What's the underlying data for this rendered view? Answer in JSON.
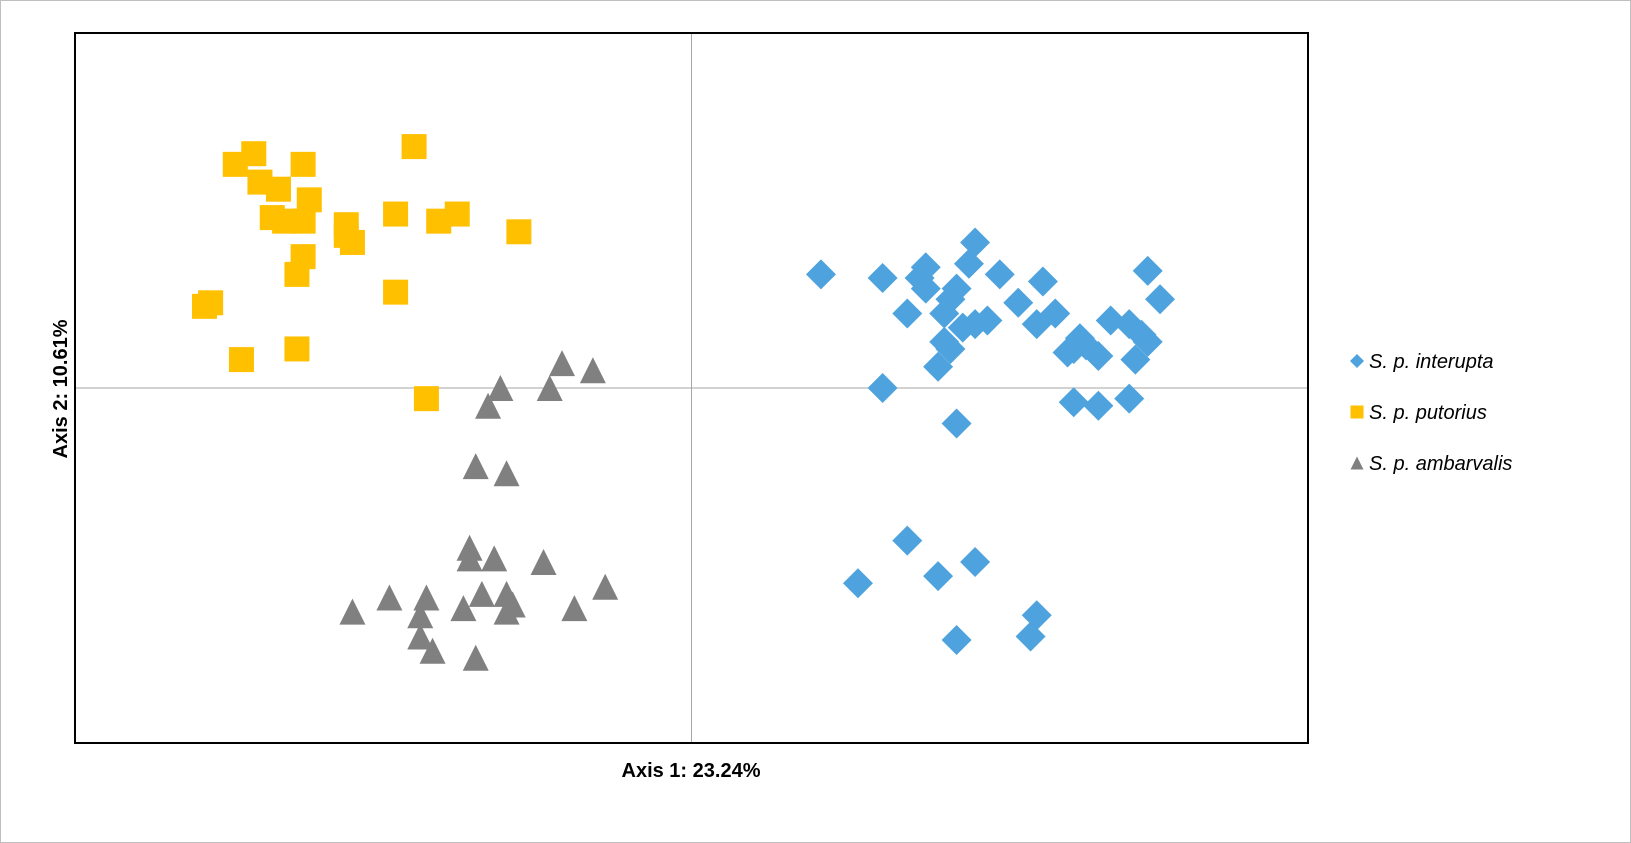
{
  "chart_data": {
    "type": "scatter",
    "title": "",
    "xlabel": "Axis 1: 23.24%",
    "ylabel": "Axis 2: 10.61%",
    "xlim": [
      -1,
      1
    ],
    "ylim": [
      -1,
      1
    ],
    "grid": false,
    "origin_lines": true,
    "legend_position": "right",
    "series": [
      {
        "name": "S. p. interupta",
        "marker": "diamond",
        "color": "#4EA3DE",
        "points": [
          [
            0.21,
            0.32
          ],
          [
            0.31,
            0.31
          ],
          [
            0.38,
            0.34
          ],
          [
            0.37,
            0.31
          ],
          [
            0.45,
            0.35
          ],
          [
            0.46,
            0.41
          ],
          [
            0.5,
            0.32
          ],
          [
            0.57,
            0.3
          ],
          [
            0.38,
            0.28
          ],
          [
            0.42,
            0.25
          ],
          [
            0.43,
            0.28
          ],
          [
            0.35,
            0.21
          ],
          [
            0.41,
            0.21
          ],
          [
            0.44,
            0.17
          ],
          [
            0.46,
            0.18
          ],
          [
            0.48,
            0.19
          ],
          [
            0.53,
            0.24
          ],
          [
            0.41,
            0.13
          ],
          [
            0.42,
            0.11
          ],
          [
            0.4,
            0.06
          ],
          [
            0.56,
            0.18
          ],
          [
            0.59,
            0.21
          ],
          [
            0.62,
            0.11
          ],
          [
            0.64,
            0.12
          ],
          [
            0.66,
            0.09
          ],
          [
            0.61,
            0.1
          ],
          [
            0.63,
            0.14
          ],
          [
            0.68,
            0.19
          ],
          [
            0.71,
            0.18
          ],
          [
            0.73,
            0.15
          ],
          [
            0.74,
            0.13
          ],
          [
            0.72,
            0.08
          ],
          [
            0.74,
            0.33
          ],
          [
            0.76,
            0.25
          ],
          [
            0.31,
            0.0
          ],
          [
            0.43,
            -0.1
          ],
          [
            0.62,
            -0.04
          ],
          [
            0.66,
            -0.05
          ],
          [
            0.71,
            -0.03
          ],
          [
            0.35,
            -0.43
          ],
          [
            0.27,
            -0.55
          ],
          [
            0.4,
            -0.53
          ],
          [
            0.46,
            -0.49
          ],
          [
            0.43,
            -0.71
          ],
          [
            0.55,
            -0.7
          ],
          [
            0.56,
            -0.64
          ]
        ]
      },
      {
        "name": "S. p. putorius",
        "marker": "square",
        "color": "#FFC000",
        "points": [
          [
            -0.74,
            0.63
          ],
          [
            -0.71,
            0.66
          ],
          [
            -0.7,
            0.58
          ],
          [
            -0.67,
            0.56
          ],
          [
            -0.68,
            0.48
          ],
          [
            -0.66,
            0.47
          ],
          [
            -0.63,
            0.47
          ],
          [
            -0.63,
            0.63
          ],
          [
            -0.62,
            0.53
          ],
          [
            -0.56,
            0.46
          ],
          [
            -0.56,
            0.43
          ],
          [
            -0.55,
            0.41
          ],
          [
            -0.48,
            0.49
          ],
          [
            -0.45,
            0.68
          ],
          [
            -0.41,
            0.47
          ],
          [
            -0.38,
            0.49
          ],
          [
            -0.28,
            0.44
          ],
          [
            -0.63,
            0.37
          ],
          [
            -0.64,
            0.32
          ],
          [
            -0.48,
            0.27
          ],
          [
            -0.78,
            0.24
          ],
          [
            -0.79,
            0.23
          ],
          [
            -0.73,
            0.08
          ],
          [
            -0.64,
            0.11
          ],
          [
            -0.43,
            -0.03
          ]
        ]
      },
      {
        "name": "S. p. ambarvalis",
        "marker": "triangle",
        "color": "#808080",
        "points": [
          [
            -0.21,
            0.07
          ],
          [
            -0.16,
            0.05
          ],
          [
            -0.23,
            0.0
          ],
          [
            -0.31,
            0.0
          ],
          [
            -0.33,
            -0.05
          ],
          [
            -0.35,
            -0.22
          ],
          [
            -0.3,
            -0.24
          ],
          [
            -0.36,
            -0.45
          ],
          [
            -0.36,
            -0.48
          ],
          [
            -0.32,
            -0.48
          ],
          [
            -0.24,
            -0.49
          ],
          [
            -0.34,
            -0.58
          ],
          [
            -0.3,
            -0.58
          ],
          [
            -0.29,
            -0.61
          ],
          [
            -0.3,
            -0.63
          ],
          [
            -0.37,
            -0.62
          ],
          [
            -0.49,
            -0.59
          ],
          [
            -0.43,
            -0.59
          ],
          [
            -0.55,
            -0.63
          ],
          [
            -0.44,
            -0.64
          ],
          [
            -0.44,
            -0.7
          ],
          [
            -0.19,
            -0.62
          ],
          [
            -0.14,
            -0.56
          ],
          [
            -0.42,
            -0.74
          ],
          [
            -0.35,
            -0.76
          ]
        ]
      }
    ]
  }
}
